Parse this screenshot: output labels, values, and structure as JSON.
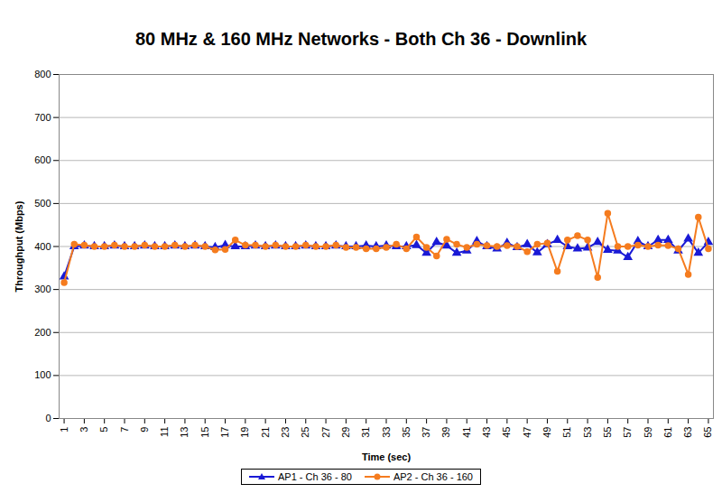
{
  "chart_data": {
    "type": "line",
    "title": "80 MHz & 160 MHz Networks - Both Ch 36 - Downlink",
    "x_label": "Time (sec)",
    "y_label": "Throughput (Mbps)",
    "x": [
      1,
      2,
      3,
      4,
      5,
      6,
      7,
      8,
      9,
      10,
      11,
      12,
      13,
      14,
      15,
      16,
      17,
      18,
      19,
      20,
      21,
      22,
      23,
      24,
      25,
      26,
      27,
      28,
      29,
      30,
      31,
      32,
      33,
      34,
      35,
      36,
      37,
      38,
      39,
      40,
      41,
      42,
      43,
      44,
      45,
      46,
      47,
      48,
      49,
      50,
      51,
      52,
      53,
      54,
      55,
      56,
      57,
      58,
      59,
      60,
      61,
      62,
      63,
      64,
      65
    ],
    "xlim": [
      0.5,
      65.5
    ],
    "xticks": [
      1,
      3,
      5,
      7,
      9,
      11,
      13,
      15,
      17,
      19,
      21,
      23,
      25,
      27,
      29,
      31,
      33,
      35,
      37,
      39,
      41,
      43,
      45,
      47,
      49,
      51,
      53,
      55,
      57,
      59,
      61,
      63,
      65
    ],
    "ylim": [
      0,
      800
    ],
    "yticks": [
      0,
      100,
      200,
      300,
      400,
      500,
      600,
      700,
      800
    ],
    "grid": true,
    "legend": "bottom",
    "series": [
      {
        "name": "AP1 - Ch 36 - 80",
        "color": "#1a1ad6",
        "marker": "triangle",
        "values": [
          330,
          400,
          402,
          400,
          400,
          402,
          400,
          400,
          402,
          400,
          400,
          402,
          400,
          402,
          400,
          398,
          403,
          400,
          400,
          402,
          400,
          402,
          400,
          400,
          402,
          400,
          400,
          402,
          400,
          400,
          402,
          400,
          402,
          400,
          400,
          403,
          385,
          410,
          402,
          385,
          390,
          412,
          400,
          395,
          408,
          398,
          405,
          386,
          405,
          415,
          400,
          395,
          397,
          410,
          392,
          390,
          375,
          412,
          400,
          415,
          415,
          390,
          418,
          385,
          410
        ]
      },
      {
        "name": "AP2 - Ch 36 - 160",
        "color": "#f57c1f",
        "marker": "circle",
        "values": [
          316,
          405,
          403,
          400,
          400,
          403,
          400,
          400,
          403,
          400,
          400,
          403,
          400,
          403,
          400,
          392,
          393,
          415,
          403,
          403,
          400,
          403,
          400,
          400,
          403,
          400,
          400,
          403,
          398,
          398,
          395,
          395,
          398,
          405,
          395,
          422,
          398,
          378,
          417,
          405,
          398,
          405,
          402,
          400,
          402,
          400,
          388,
          405,
          408,
          342,
          415,
          425,
          415,
          328,
          477,
          400,
          400,
          403,
          400,
          403,
          402,
          395,
          335,
          468,
          395
        ]
      }
    ]
  }
}
